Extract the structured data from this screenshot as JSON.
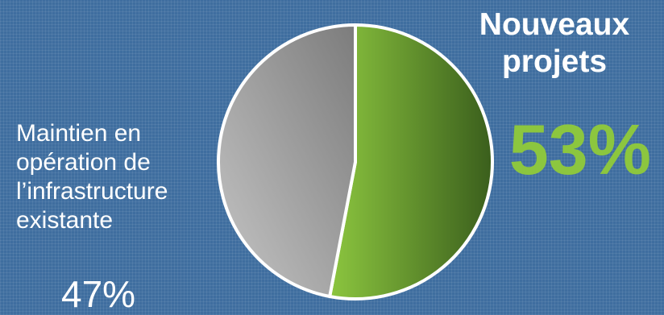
{
  "chart_data": {
    "type": "pie",
    "slices": [
      {
        "label_lines": [
          "Nouveaux",
          "projets"
        ],
        "value": 53,
        "value_label": "53%",
        "color": "#8cc63f"
      },
      {
        "label_lines": [
          "Maintien en",
          "opération de",
          "l’infrastructure",
          "existante"
        ],
        "value": 47,
        "value_label": "47%",
        "color": "#9a9a9a"
      }
    ],
    "legend": false,
    "grid": false
  }
}
